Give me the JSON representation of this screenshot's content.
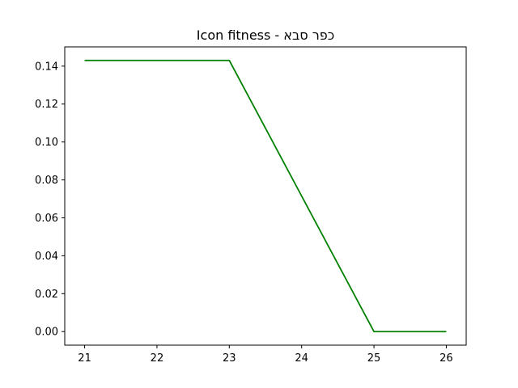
{
  "chart_data": {
    "type": "line",
    "title": "Icon fitness - כפר סבא",
    "xlabel": "",
    "ylabel": "",
    "x": [
      21,
      22,
      23,
      24,
      25,
      26
    ],
    "series": [
      {
        "color": "#008000",
        "values": [
          0.143,
          0.143,
          0.143,
          0.0715,
          0.0,
          0.0
        ]
      }
    ],
    "xlim": [
      20.725,
      26.275
    ],
    "ylim": [
      -0.00715,
      0.15015
    ],
    "xticks": [
      21,
      22,
      23,
      24,
      25,
      26
    ],
    "xtick_labels": [
      "21",
      "22",
      "23",
      "24",
      "25",
      "26"
    ],
    "yticks": [
      0.0,
      0.02,
      0.04,
      0.06,
      0.08,
      0.1,
      0.12,
      0.14
    ],
    "ytick_labels": [
      "0.00",
      "0.02",
      "0.04",
      "0.06",
      "0.08",
      "0.10",
      "0.12",
      "0.14"
    ],
    "grid": false,
    "legend": false
  }
}
